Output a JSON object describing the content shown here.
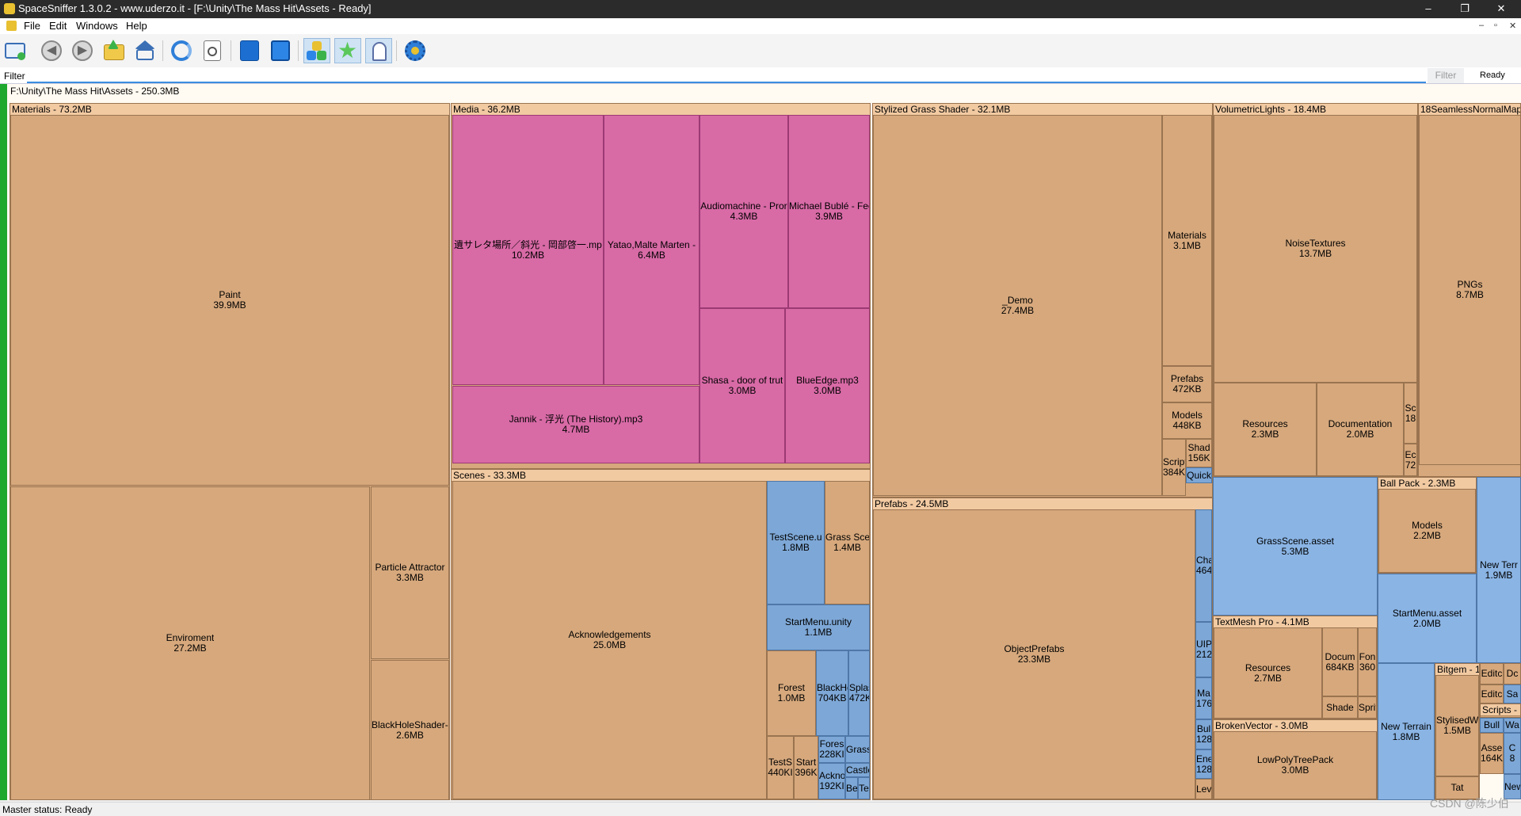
{
  "window": {
    "title": "SpaceSniffer 1.3.0.2 - www.uderzo.it - [F:\\Unity\\The Mass Hit\\Assets - Ready]",
    "minimize": "–",
    "restore": "❐",
    "close": "✕"
  },
  "menu": [
    "File",
    "Edit",
    "Windows",
    "Help"
  ],
  "mdi_controls": [
    "–",
    "▫",
    "✕"
  ],
  "toolbar_icons": [
    "new-scan-icon",
    "back-icon",
    "forward-icon",
    "up-folder-icon",
    "home-icon",
    "refresh-icon",
    "export-icon",
    "blue-cube-icon",
    "blue-cube-outline-icon",
    "boxes-icon",
    "star-icon",
    "ghost-icon",
    "settings-icon"
  ],
  "filter": {
    "label": "Filter",
    "value": "",
    "button": "Filter",
    "status": "Ready"
  },
  "root": {
    "label": "F:\\Unity\\The Mass Hit\\Assets - 250.3MB"
  },
  "nodes": {
    "materials": {
      "header": "Materials - 73.2MB"
    },
    "paint": {
      "name": "Paint",
      "size": "39.9MB"
    },
    "enviroment": {
      "name": "Enviroment",
      "size": "27.2MB"
    },
    "particle": {
      "name": "Particle Attractor",
      "size": "3.3MB"
    },
    "blackhole": {
      "name": "BlackHoleShader-r",
      "size": "2.6MB"
    },
    "media": {
      "header": "Media - 36.2MB"
    },
    "song1": {
      "name": "遺サレタ場所／斜光 - 岡部啓一.mp",
      "size": "10.2MB"
    },
    "song2": {
      "name": "Yatao,Malte Marten -",
      "size": "6.4MB"
    },
    "song3": {
      "name": "Audiomachine - Pror",
      "size": "4.3MB"
    },
    "song4": {
      "name": "Michael Bublé - Fee",
      "size": "3.9MB"
    },
    "song5": {
      "name": "Jannik - 浮光 (The History).mp3",
      "size": "4.7MB"
    },
    "song6": {
      "name": "Shasa - door of trut",
      "size": "3.0MB"
    },
    "song7": {
      "name": "BlueEdge.mp3",
      "size": "3.0MB"
    },
    "scenes": {
      "header": "Scenes - 33.3MB"
    },
    "ack": {
      "name": "Acknowledgements",
      "size": "25.0MB"
    },
    "testscene": {
      "name": "TestScene.u",
      "size": "1.8MB"
    },
    "grassscene_s": {
      "name": "Grass Scer",
      "size": "1.4MB"
    },
    "startmenu_s": {
      "name": "StartMenu.unity",
      "size": "1.1MB"
    },
    "forest": {
      "name": "Forest",
      "size": "1.0MB"
    },
    "blackh": {
      "name": "BlackHo",
      "size": "704KB"
    },
    "splas": {
      "name": "Splas",
      "size": "472K"
    },
    "tests": {
      "name": "TestS",
      "size": "440KI"
    },
    "start": {
      "name": "Start",
      "size": "396K"
    },
    "fores": {
      "name": "Fores",
      "size": "228KI"
    },
    "grass_s": {
      "name": "Grass",
      "size": ""
    },
    "castle": {
      "name": "Castle",
      "size": ""
    },
    "ackno": {
      "name": "Ackno",
      "size": "192KI"
    },
    "be": {
      "name": "Be",
      "size": ""
    },
    "te": {
      "name": "Te",
      "size": ""
    },
    "stylized": {
      "header": "Stylized Grass Shader - 32.1MB"
    },
    "demo": {
      "name": "_Demo",
      "size": "27.4MB"
    },
    "sg_materials": {
      "name": "Materials",
      "size": "3.1MB"
    },
    "sg_prefabs": {
      "name": "Prefabs",
      "size": "472KB"
    },
    "sg_models": {
      "name": "Models",
      "size": "448KB"
    },
    "sg_script": {
      "name": "Script",
      "size": "384KI"
    },
    "sg_shad": {
      "name": "Shad",
      "size": "156K"
    },
    "sg_quick": {
      "name": "Quick",
      "size": ""
    },
    "prefabs": {
      "header": "Prefabs - 24.5MB"
    },
    "objectprefabs": {
      "name": "ObjectPrefabs",
      "size": "23.3MB"
    },
    "pf_cha": {
      "name": "Cha",
      "size": "464"
    },
    "pf_uip": {
      "name": "UIP",
      "size": "212"
    },
    "pf_ma": {
      "name": "Ma",
      "size": "176"
    },
    "pf_bul": {
      "name": "Bul",
      "size": "128"
    },
    "pf_ene": {
      "name": "Ene",
      "size": "128"
    },
    "pf_lev": {
      "name": "Lev",
      "size": ""
    },
    "volumetric": {
      "header": "VolumetricLights - 18.4MB"
    },
    "noise": {
      "name": "NoiseTextures",
      "size": "13.7MB"
    },
    "vl_resources": {
      "name": "Resources",
      "size": "2.3MB"
    },
    "vl_doc": {
      "name": "Documentation",
      "size": "2.0MB"
    },
    "vl_sc": {
      "name": "Sc",
      "size": "18"
    },
    "vl_ec": {
      "name": "Ec",
      "size": "72"
    },
    "seamless": {
      "header": "18SeamlessNormalMaps"
    },
    "pngs": {
      "name": "PNGs",
      "size": "8.7MB"
    },
    "grassscene_asset": {
      "name": "GrassScene.asset",
      "size": "5.3MB"
    },
    "startmenu_asset": {
      "name": "StartMenu.asset",
      "size": "2.0MB"
    },
    "ballpack": {
      "header": "Ball Pack - 2.3MB"
    },
    "bp_models": {
      "name": "Models",
      "size": "2.2MB"
    },
    "newterr1": {
      "name": "New Terr",
      "size": "1.9MB"
    },
    "textmesh": {
      "header": "TextMesh Pro - 4.1MB"
    },
    "tm_resources": {
      "name": "Resources",
      "size": "2.7MB"
    },
    "tm_docum": {
      "name": "Docum",
      "size": "684KB"
    },
    "tm_fon": {
      "name": "Fon",
      "size": "360"
    },
    "tm_shade": {
      "name": "Shade",
      "size": ""
    },
    "tm_sprite": {
      "name": "Sprite",
      "size": ""
    },
    "brokenvector": {
      "header": "BrokenVector - 3.0MB"
    },
    "lowpoly": {
      "name": "LowPolyTreePack",
      "size": "3.0MB"
    },
    "newterrain": {
      "name": "New Terrain",
      "size": "1.8MB"
    },
    "bitgem": {
      "header": "Bitgem - 1"
    },
    "stylisedw": {
      "name": "StylisedW",
      "size": "1.5MB"
    },
    "bg_tab": {
      "name": "Tat",
      "size": ""
    },
    "misc_editc1": {
      "name": "Editc",
      "size": ""
    },
    "misc_dc": {
      "name": "Dc",
      "size": ""
    },
    "misc_editc2": {
      "name": "Editc",
      "size": ""
    },
    "misc_sa": {
      "name": "Sa",
      "size": ""
    },
    "scripts_hdr": {
      "header": "Scripts -"
    },
    "misc_bull": {
      "name": "Bull",
      "size": ""
    },
    "misc_wa": {
      "name": "Wa",
      "size": ""
    },
    "misc_asse": {
      "name": "Asse",
      "size": "164K"
    },
    "misc_c": {
      "name": "C",
      "size": "8"
    },
    "misc_new": {
      "name": "New",
      "size": ""
    }
  },
  "status": {
    "text": "Master status: Ready"
  },
  "watermark": "CSDN @陈少伯"
}
